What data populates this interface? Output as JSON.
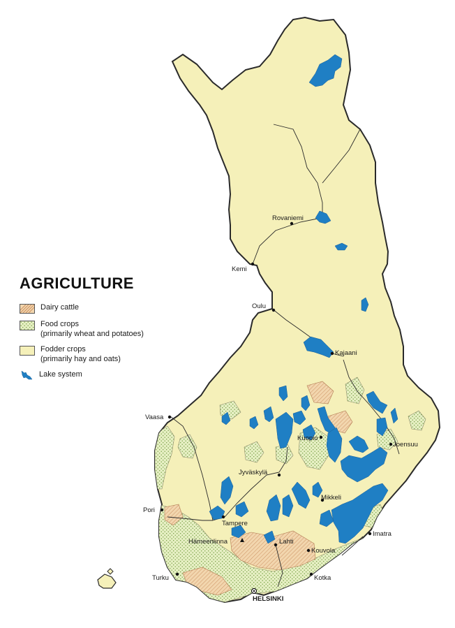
{
  "title": "AGRICULTURE",
  "legend": {
    "dairy": {
      "label": "Dairy cattle"
    },
    "food": {
      "label": "Food crops",
      "sub": "(primarily wheat and potatoes)"
    },
    "fodder": {
      "label": "Fodder crops",
      "sub": "(primarily hay and oats)"
    },
    "lake": {
      "label": "Lake system"
    }
  },
  "colors": {
    "fodder": "#f5f0b9",
    "food": "#e6efc3",
    "dairy": "#f2d6ae",
    "lake": "#1f7fc4",
    "border": "#2a2a2a"
  },
  "cities": {
    "rovaniemi": "Rovaniemi",
    "kemi": "Kemi",
    "oulu": "Oulu",
    "kajaani": "Kajaani",
    "vaasa": "Vaasa",
    "kuopio": "Kuopio",
    "joensuu": "Joensuu",
    "jyvaskyla": "Jyväskylä",
    "pori": "Pori",
    "tampere": "Tampere",
    "mikkeli": "Mikkeli",
    "hameenlinna": "Hämeenlinna",
    "lahti": "Lahti",
    "imatra": "Imatra",
    "kouvola": "Kouvola",
    "turku": "Turku",
    "kotka": "Kotka",
    "helsinki": "HELSINKI"
  }
}
